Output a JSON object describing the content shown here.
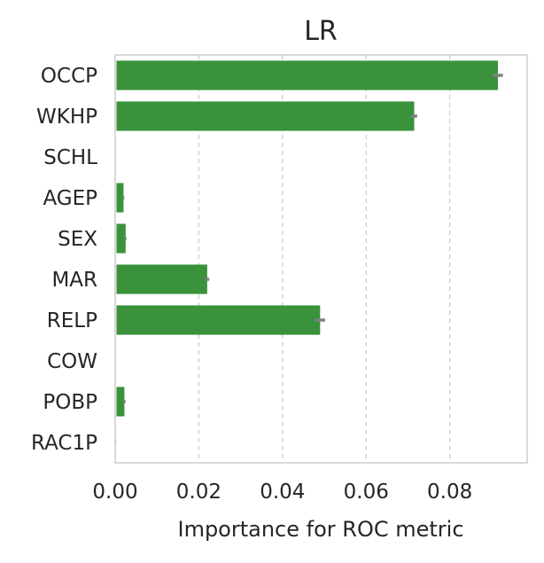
{
  "chart_data": {
    "type": "bar",
    "orientation": "horizontal",
    "title": "LR",
    "xlabel": "Importance for ROC metric",
    "ylabel": "",
    "xlim": [
      0.0,
      0.0985
    ],
    "xticks": [
      0.0,
      0.02,
      0.04,
      0.06,
      0.08
    ],
    "xtick_labels": [
      "0.00",
      "0.02",
      "0.04",
      "0.06",
      "0.08"
    ],
    "grid": "x-dashed",
    "legend": "none",
    "bar_color": "#3a923a",
    "error_color": "#808080",
    "categories": [
      "OCCP",
      "WKHP",
      "SCHL",
      "AGEP",
      "SEX",
      "MAR",
      "RELP",
      "COW",
      "POBP",
      "RAC1P"
    ],
    "values": [
      0.0915,
      0.0715,
      0.0,
      0.002,
      0.0025,
      0.022,
      0.049,
      0.0,
      0.0022,
      0.0001
    ],
    "errors": [
      0.0012,
      0.0007,
      0.0,
      0.0002,
      0.0002,
      0.0005,
      0.0012,
      0.0,
      0.0003,
      0.0001
    ]
  }
}
